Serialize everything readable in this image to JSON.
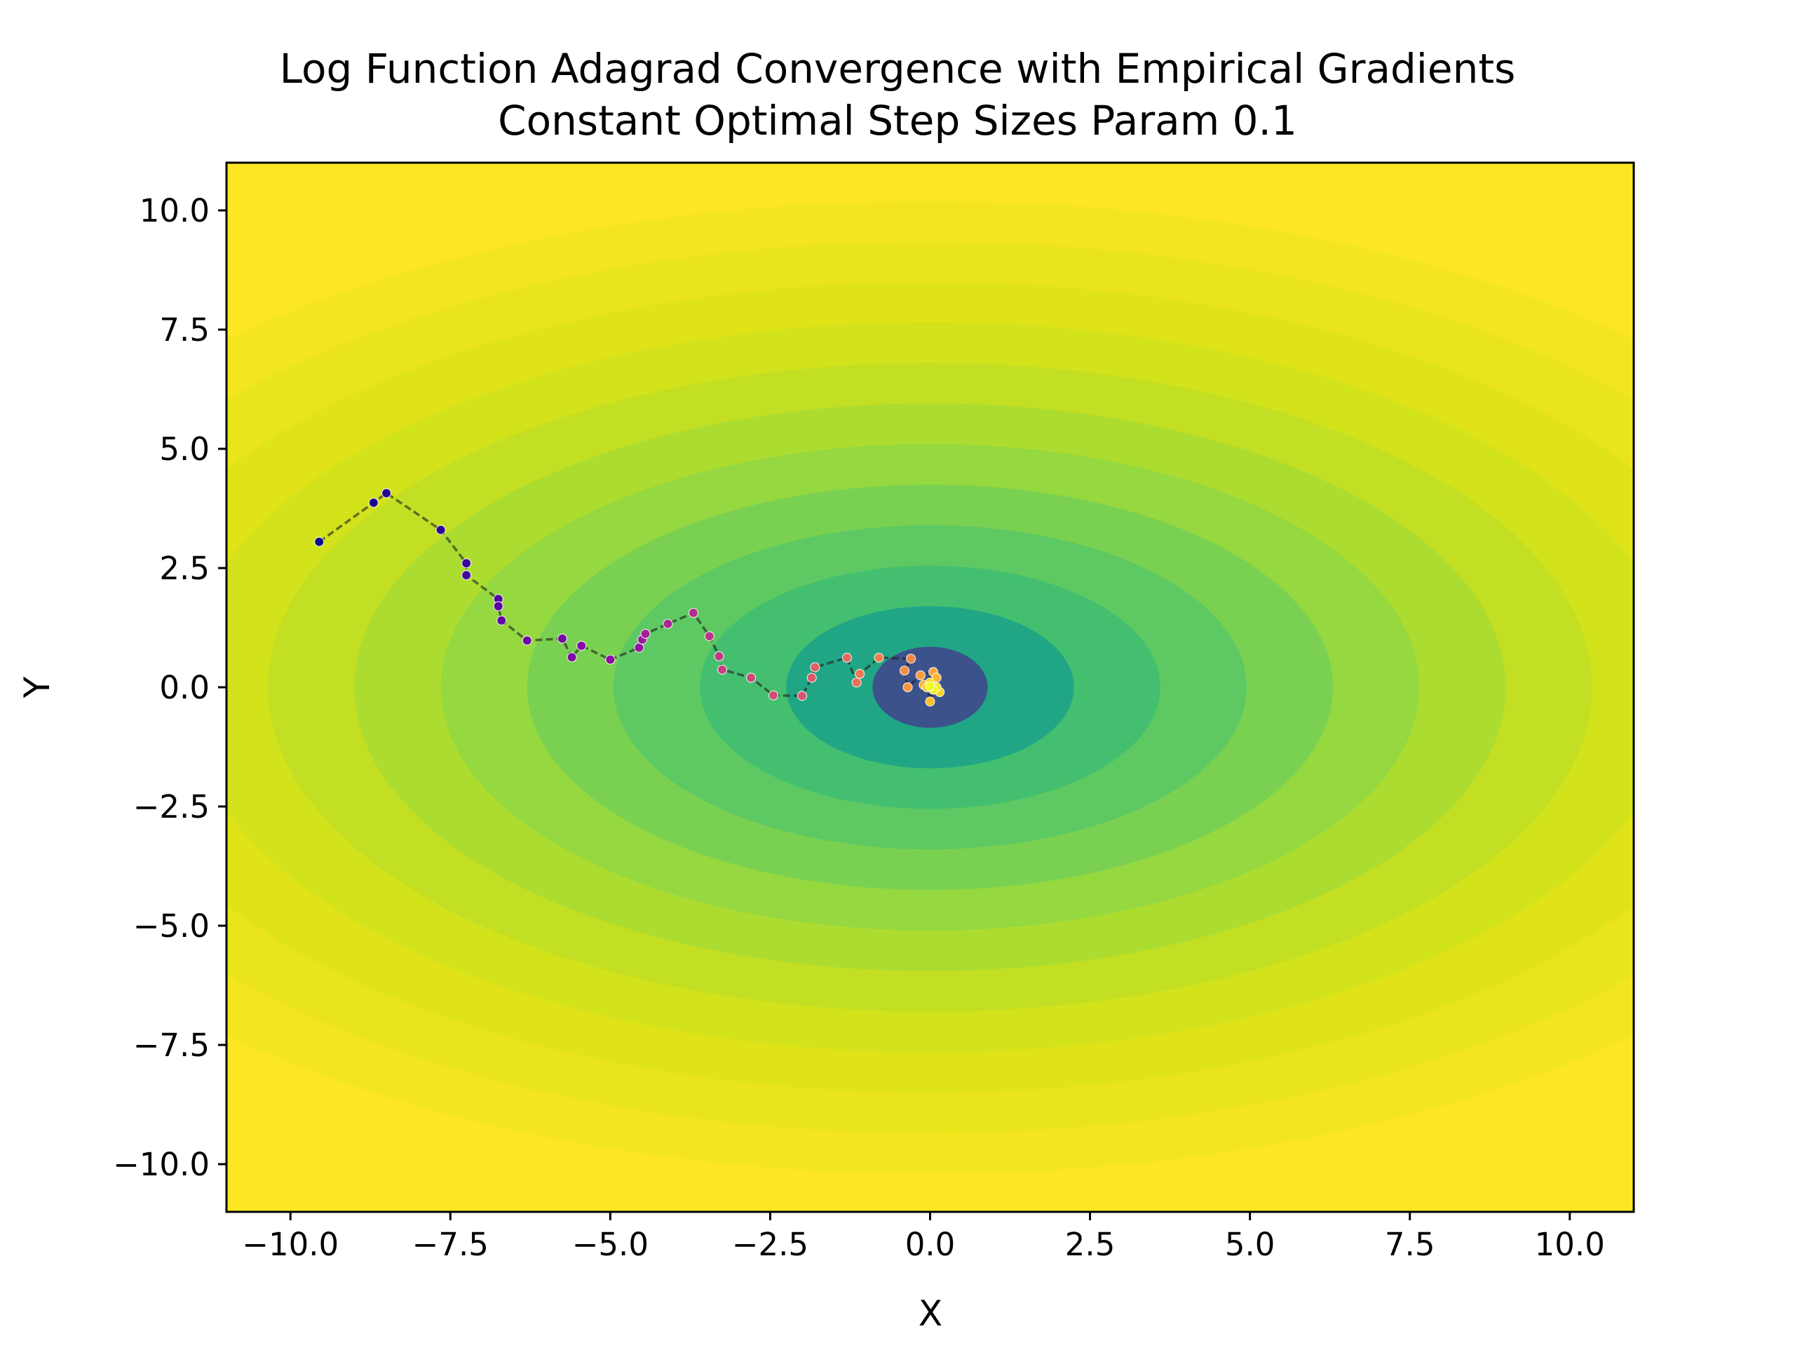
{
  "chart_data": {
    "type": "scatter",
    "title": "Log Function Adagrad Convergence with Empirical Gradients",
    "subtitle": "Constant Optimal Step Sizes Param 0.1",
    "xlabel": "X",
    "ylabel": "Y",
    "xlim": [
      -11,
      11
    ],
    "ylim": [
      -11,
      11
    ],
    "x_ticks": [
      -10.0,
      -7.5,
      -5.0,
      -2.5,
      0.0,
      2.5,
      5.0,
      7.5,
      10.0
    ],
    "y_ticks": [
      -10.0,
      -7.5,
      -5.0,
      -2.5,
      0.0,
      2.5,
      5.0,
      7.5,
      10.0
    ],
    "x_tick_labels": [
      "−10.0",
      "−7.5",
      "−5.0",
      "−2.5",
      "0.0",
      "2.5",
      "5.0",
      "7.5",
      "10.0"
    ],
    "y_tick_labels": [
      "−10.0",
      "−7.5",
      "−5.0",
      "−2.5",
      "0.0",
      "2.5",
      "5.0",
      "7.5",
      "10.0"
    ],
    "grid": false,
    "background": {
      "kind": "filled-contour",
      "function": "log(1 + x^2/a + y^2/b)",
      "center": [
        0,
        0
      ],
      "colormap": "viridis",
      "levels": [
        "#3b528b",
        "#21a685",
        "#44bf70",
        "#5ec962",
        "#7ad151",
        "#95d840",
        "#addc30",
        "#c2df23",
        "#d2e21b",
        "#e0e318",
        "#eae51a",
        "#f4e61e",
        "#fde725"
      ]
    },
    "path": {
      "line_color": "#1f1f1f",
      "line_style": "dashed",
      "marker_colormap": "plasma",
      "points": [
        [
          -9.55,
          3.05
        ],
        [
          -8.7,
          3.87
        ],
        [
          -8.5,
          4.07
        ],
        [
          -7.65,
          3.3
        ],
        [
          -7.25,
          2.6
        ],
        [
          -7.25,
          2.35
        ],
        [
          -6.75,
          1.85
        ],
        [
          -6.75,
          1.7
        ],
        [
          -6.7,
          1.4
        ],
        [
          -6.3,
          0.98
        ],
        [
          -5.75,
          1.02
        ],
        [
          -5.6,
          0.63
        ],
        [
          -5.45,
          0.87
        ],
        [
          -5.0,
          0.58
        ],
        [
          -4.55,
          0.83
        ],
        [
          -4.5,
          1.0
        ],
        [
          -4.45,
          1.12
        ],
        [
          -4.1,
          1.33
        ],
        [
          -3.7,
          1.56
        ],
        [
          -3.45,
          1.07
        ],
        [
          -3.3,
          0.65
        ],
        [
          -3.25,
          0.37
        ],
        [
          -2.8,
          0.2
        ],
        [
          -2.45,
          -0.17
        ],
        [
          -2.0,
          -0.18
        ],
        [
          -1.85,
          0.2
        ],
        [
          -1.8,
          0.42
        ],
        [
          -1.3,
          0.62
        ],
        [
          -1.15,
          0.1
        ],
        [
          -1.1,
          0.28
        ],
        [
          -0.8,
          0.62
        ],
        [
          -0.3,
          0.6
        ],
        [
          -0.4,
          0.35
        ],
        [
          -0.35,
          0.0
        ],
        [
          -0.15,
          0.25
        ],
        [
          0.05,
          0.32
        ],
        [
          -0.1,
          0.05
        ],
        [
          0.1,
          0.2
        ],
        [
          0.0,
          -0.3
        ],
        [
          -0.05,
          0.0
        ],
        [
          0.15,
          -0.1
        ],
        [
          0.0,
          0.1
        ],
        [
          0.1,
          0.0
        ],
        [
          0.05,
          -0.05
        ],
        [
          0.0,
          0.02
        ]
      ]
    }
  }
}
